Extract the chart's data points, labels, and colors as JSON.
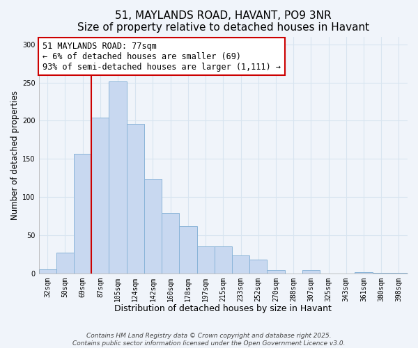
{
  "title": "51, MAYLANDS ROAD, HAVANT, PO9 3NR",
  "subtitle": "Size of property relative to detached houses in Havant",
  "xlabel": "Distribution of detached houses by size in Havant",
  "ylabel": "Number of detached properties",
  "bar_labels": [
    "32sqm",
    "50sqm",
    "69sqm",
    "87sqm",
    "105sqm",
    "124sqm",
    "142sqm",
    "160sqm",
    "178sqm",
    "197sqm",
    "215sqm",
    "233sqm",
    "252sqm",
    "270sqm",
    "288sqm",
    "307sqm",
    "325sqm",
    "343sqm",
    "361sqm",
    "380sqm",
    "398sqm"
  ],
  "bar_values": [
    5,
    27,
    157,
    204,
    251,
    196,
    124,
    79,
    62,
    35,
    35,
    23,
    18,
    4,
    0,
    4,
    0,
    0,
    2,
    1,
    1
  ],
  "bar_color": "#c8d8f0",
  "bar_edge_color": "#8ab4d8",
  "vline_x_index": 2,
  "vline_color": "#cc0000",
  "annotation_line1": "51 MAYLANDS ROAD: 77sqm",
  "annotation_line2": "← 6% of detached houses are smaller (69)",
  "annotation_line3": "93% of semi-detached houses are larger (1,111) →",
  "annotation_box_color": "#ffffff",
  "annotation_box_edge_color": "#cc0000",
  "ylim": [
    0,
    310
  ],
  "yticks": [
    0,
    50,
    100,
    150,
    200,
    250,
    300
  ],
  "footer_line1": "Contains HM Land Registry data © Crown copyright and database right 2025.",
  "footer_line2": "Contains public sector information licensed under the Open Government Licence v3.0.",
  "background_color": "#f0f4fa",
  "grid_color": "#d8e4f0",
  "title_fontsize": 11,
  "subtitle_fontsize": 9.5,
  "xlabel_fontsize": 9,
  "ylabel_fontsize": 8.5,
  "tick_fontsize": 7,
  "footer_fontsize": 6.5,
  "annotation_fontsize": 8.5
}
